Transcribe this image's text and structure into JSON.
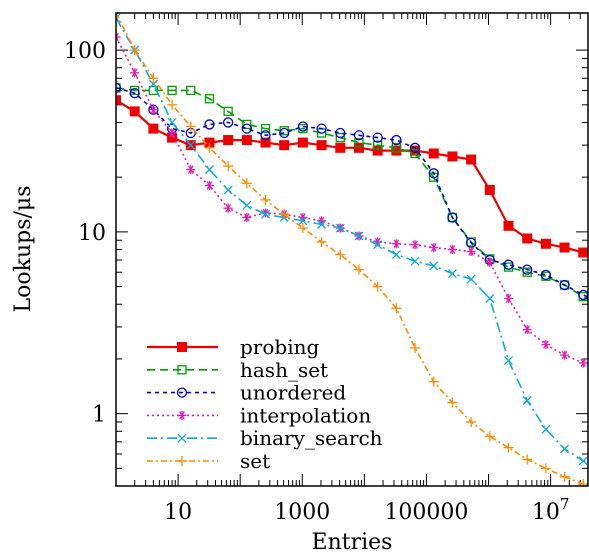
{
  "chart_data": {
    "type": "line",
    "xlabel": "Entries",
    "ylabel": "Lookups/μs",
    "xscale": "log",
    "yscale": "log",
    "xlim": [
      1,
      40000000
    ],
    "ylim": [
      0.4,
      160
    ],
    "x_ticks": [
      {
        "value": 10,
        "label": "10"
      },
      {
        "value": 1000,
        "label": "1000"
      },
      {
        "value": 100000,
        "label": "100000"
      },
      {
        "value": 10000000,
        "label": "10^7"
      }
    ],
    "y_ticks": [
      {
        "value": 1,
        "label": "1"
      },
      {
        "value": 10,
        "label": "10"
      },
      {
        "value": 100,
        "label": "100"
      }
    ],
    "legend_position": "bottom-left",
    "series": [
      {
        "name": "probing",
        "color": "#ee0000",
        "dash": "",
        "marker": "square-filled",
        "points": [
          [
            1,
            53
          ],
          [
            2,
            46
          ],
          [
            4,
            37
          ],
          [
            8,
            33
          ],
          [
            16,
            30
          ],
          [
            32,
            31
          ],
          [
            64,
            32
          ],
          [
            128,
            32
          ],
          [
            256,
            31
          ],
          [
            512,
            30
          ],
          [
            1024,
            31
          ],
          [
            2048,
            30
          ],
          [
            4096,
            29
          ],
          [
            8192,
            29
          ],
          [
            16384,
            28
          ],
          [
            32768,
            28
          ],
          [
            65536,
            28
          ],
          [
            131072,
            27
          ],
          [
            262144,
            26
          ],
          [
            524288,
            25
          ],
          [
            1048576,
            17
          ],
          [
            2097152,
            10.8
          ],
          [
            4194304,
            9.2
          ],
          [
            8388608,
            8.6
          ],
          [
            16777216,
            8.2
          ],
          [
            33554432,
            7.7
          ],
          [
            67108864,
            7.2
          ]
        ]
      },
      {
        "name": "hash_set",
        "color": "#00a000",
        "dash": "8,5",
        "marker": "square-open",
        "points": [
          [
            1,
            62
          ],
          [
            2,
            60
          ],
          [
            4,
            60
          ],
          [
            8,
            60
          ],
          [
            16,
            60
          ],
          [
            32,
            54
          ],
          [
            64,
            46
          ],
          [
            128,
            39
          ],
          [
            256,
            37
          ],
          [
            512,
            36
          ],
          [
            1024,
            37
          ],
          [
            2048,
            35
          ],
          [
            4096,
            33
          ],
          [
            8192,
            31
          ],
          [
            16384,
            30
          ],
          [
            32768,
            29
          ],
          [
            65536,
            27
          ],
          [
            131072,
            20
          ],
          [
            262144,
            12
          ],
          [
            524288,
            8.8
          ],
          [
            1048576,
            7.1
          ],
          [
            2097152,
            6.4
          ],
          [
            4194304,
            6.0
          ],
          [
            8388608,
            5.7
          ],
          [
            16777216,
            5.1
          ],
          [
            33554432,
            4.4
          ],
          [
            67108864,
            3.8
          ]
        ]
      },
      {
        "name": "unordered",
        "color": "#0000c0",
        "dash": "4,4",
        "marker": "circle-open",
        "points": [
          [
            1,
            62
          ],
          [
            2,
            58
          ],
          [
            4,
            47
          ],
          [
            8,
            37
          ],
          [
            16,
            35
          ],
          [
            32,
            39
          ],
          [
            64,
            40
          ],
          [
            128,
            37
          ],
          [
            256,
            34
          ],
          [
            512,
            35
          ],
          [
            1024,
            38
          ],
          [
            2048,
            37
          ],
          [
            4096,
            35
          ],
          [
            8192,
            34
          ],
          [
            16384,
            33
          ],
          [
            32768,
            32
          ],
          [
            65536,
            29
          ],
          [
            131072,
            21
          ],
          [
            262144,
            12
          ],
          [
            524288,
            8.7
          ],
          [
            1048576,
            7.0
          ],
          [
            2097152,
            6.6
          ],
          [
            4194304,
            6.2
          ],
          [
            8388608,
            5.8
          ],
          [
            16777216,
            5.1
          ],
          [
            33554432,
            4.5
          ],
          [
            67108864,
            4.0
          ]
        ]
      },
      {
        "name": "interpolation",
        "color": "#e020b0",
        "dash": "2,3",
        "marker": "star",
        "points": [
          [
            1,
            118
          ],
          [
            2,
            75
          ],
          [
            4,
            47
          ],
          [
            8,
            35
          ],
          [
            16,
            22
          ],
          [
            32,
            18
          ],
          [
            64,
            13.5
          ],
          [
            128,
            12
          ],
          [
            256,
            12.7
          ],
          [
            512,
            12.5
          ],
          [
            1024,
            12
          ],
          [
            2048,
            11.5
          ],
          [
            4096,
            10.5
          ],
          [
            8192,
            9.5
          ],
          [
            16384,
            8.8
          ],
          [
            32768,
            8.6
          ],
          [
            65536,
            8.5
          ],
          [
            131072,
            8.2
          ],
          [
            262144,
            8.0
          ],
          [
            524288,
            7.8
          ],
          [
            1048576,
            6.8
          ],
          [
            2097152,
            4.3
          ],
          [
            4194304,
            2.9
          ],
          [
            8388608,
            2.4
          ],
          [
            16777216,
            2.1
          ],
          [
            33554432,
            1.9
          ],
          [
            67108864,
            1.85
          ]
        ]
      },
      {
        "name": "binary_search",
        "color": "#10a8e0",
        "dash": "10,4,2,4",
        "marker": "cross",
        "points": [
          [
            1,
            150
          ],
          [
            2,
            100
          ],
          [
            4,
            65
          ],
          [
            8,
            40
          ],
          [
            16,
            30
          ],
          [
            32,
            22
          ],
          [
            64,
            17
          ],
          [
            128,
            14
          ],
          [
            256,
            12.5
          ],
          [
            512,
            12
          ],
          [
            1024,
            11.5
          ],
          [
            2048,
            11
          ],
          [
            4096,
            10.5
          ],
          [
            8192,
            9.5
          ],
          [
            16384,
            8.5
          ],
          [
            32768,
            7.5
          ],
          [
            65536,
            6.9
          ],
          [
            131072,
            6.5
          ],
          [
            262144,
            5.9
          ],
          [
            524288,
            5.5
          ],
          [
            1048576,
            4.3
          ],
          [
            2097152,
            1.96
          ],
          [
            4194304,
            1.18
          ],
          [
            8388608,
            0.82
          ],
          [
            16777216,
            0.64
          ],
          [
            33554432,
            0.55
          ],
          [
            67108864,
            0.5
          ]
        ]
      },
      {
        "name": "set",
        "color": "#ff8c00",
        "dash": "6,3,2,3",
        "marker": "plus",
        "points": [
          [
            1,
            160
          ],
          [
            2,
            100
          ],
          [
            4,
            70
          ],
          [
            8,
            50
          ],
          [
            16,
            38
          ],
          [
            32,
            29
          ],
          [
            64,
            23
          ],
          [
            128,
            18.5
          ],
          [
            256,
            15
          ],
          [
            512,
            12.5
          ],
          [
            1024,
            10.5
          ],
          [
            2048,
            8.8
          ],
          [
            4096,
            7.5
          ],
          [
            8192,
            6.2
          ],
          [
            16384,
            5.0
          ],
          [
            32768,
            3.8
          ],
          [
            65536,
            2.3
          ],
          [
            131072,
            1.5
          ],
          [
            262144,
            1.15
          ],
          [
            524288,
            0.9
          ],
          [
            1048576,
            0.75
          ],
          [
            2097152,
            0.65
          ],
          [
            4194304,
            0.56
          ],
          [
            8388608,
            0.5
          ],
          [
            16777216,
            0.45
          ],
          [
            33554432,
            0.41
          ],
          [
            67108864,
            0.38
          ]
        ]
      }
    ]
  }
}
